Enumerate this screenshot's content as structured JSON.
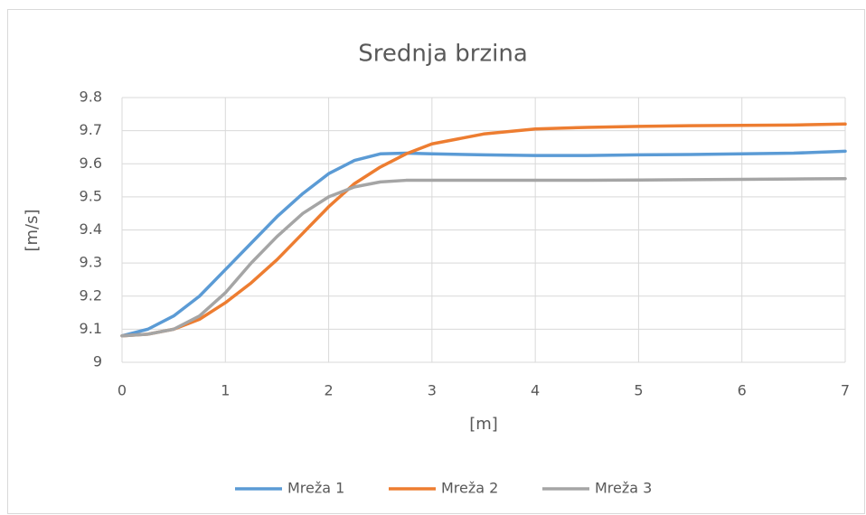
{
  "chart_data": {
    "type": "line",
    "title": "Srednja brzina",
    "x_label": "[m]",
    "y_label": "[m/s]",
    "x": [
      0,
      0.25,
      0.5,
      0.75,
      1,
      1.25,
      1.5,
      1.75,
      2,
      2.25,
      2.5,
      2.75,
      3,
      3.5,
      4,
      4.5,
      5,
      5.5,
      6,
      6.5,
      7
    ],
    "series": [
      {
        "name": "Mreža 1",
        "color": "#5b9bd5",
        "values": [
          9.08,
          9.1,
          9.14,
          9.2,
          9.28,
          9.36,
          9.44,
          9.51,
          9.57,
          9.61,
          9.63,
          9.632,
          9.63,
          9.627,
          9.625,
          9.625,
          9.627,
          9.628,
          9.63,
          9.632,
          9.638
        ]
      },
      {
        "name": "Mreža 2",
        "color": "#ed7d31",
        "values": [
          9.08,
          9.085,
          9.1,
          9.13,
          9.18,
          9.24,
          9.31,
          9.39,
          9.47,
          9.54,
          9.59,
          9.63,
          9.66,
          9.69,
          9.705,
          9.71,
          9.713,
          9.715,
          9.716,
          9.717,
          9.72
        ]
      },
      {
        "name": "Mreža 3",
        "color": "#a5a5a5",
        "values": [
          9.08,
          9.085,
          9.1,
          9.14,
          9.21,
          9.3,
          9.38,
          9.45,
          9.5,
          9.53,
          9.545,
          9.55,
          9.55,
          9.55,
          9.55,
          9.55,
          9.551,
          9.552,
          9.553,
          9.554,
          9.555
        ]
      }
    ],
    "xlim": [
      0,
      7
    ],
    "xticks": [
      0,
      1,
      2,
      3,
      4,
      5,
      6,
      7
    ],
    "ylim": [
      9,
      9.8
    ],
    "yticks": [
      9,
      9.1,
      9.2,
      9.3,
      9.4,
      9.5,
      9.6,
      9.7,
      9.8
    ],
    "grid": true,
    "legend": "bottom"
  }
}
